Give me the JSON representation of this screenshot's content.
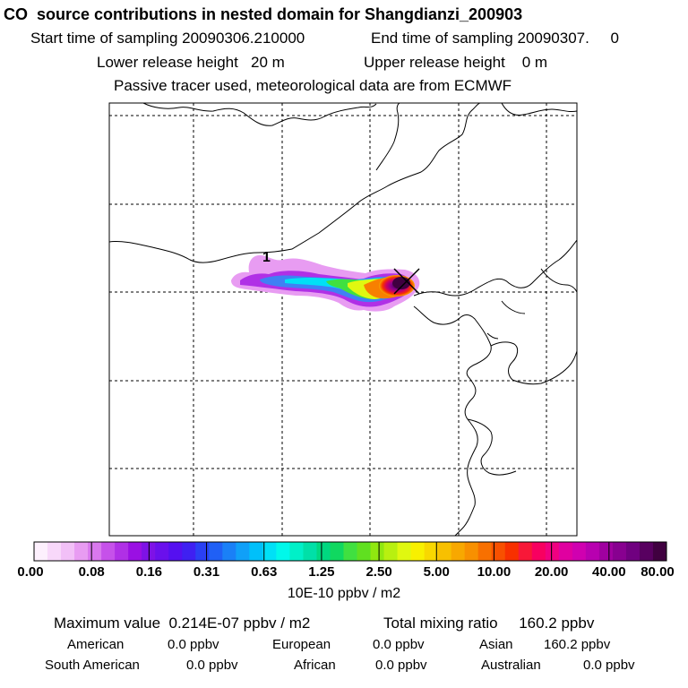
{
  "header": {
    "title": "CO  source contributions in nested domain for Shangdianzi_200903",
    "start_label": "Start time of sampling",
    "start_value": "20090306.210000",
    "end_label": "End time of sampling",
    "end_value": "20090307.     0",
    "lower_label": "Lower release height",
    "lower_value": "20 m",
    "upper_label": "Upper release height",
    "upper_value": "0 m",
    "note": "Passive tracer used, meteorological data are from ECMWF"
  },
  "map": {
    "marker_label": "1",
    "site_marker": "x-icon"
  },
  "colorbar": {
    "ticks": [
      "0.00",
      "0.08",
      "0.16",
      "0.31",
      "0.63",
      "1.25",
      "2.50",
      "5.00",
      "10.00",
      "20.00",
      "40.00",
      "80.00"
    ],
    "unit": "10E-10 ppbv / m2",
    "colors": [
      "#fdf0fd",
      "#f8d8fa",
      "#f2c0f7",
      "#e89cf2",
      "#d978ee",
      "#c651ea",
      "#b030e6",
      "#9a10e3",
      "#7e12e6",
      "#6a10ec",
      "#5510f0",
      "#3f20f2",
      "#2a40f4",
      "#2060f5",
      "#1a80f7",
      "#10a0f8",
      "#00c0fa",
      "#00e0f6",
      "#00f8ea",
      "#00f0c8",
      "#00e0a8",
      "#00d880",
      "#10d860",
      "#40e040",
      "#60e020",
      "#90e810",
      "#b8f010",
      "#e0f810",
      "#f8f000",
      "#f8d800",
      "#f8c000",
      "#f8a800",
      "#f89000",
      "#f87000",
      "#f85000",
      "#f83000",
      "#f81838",
      "#f80060",
      "#f00080",
      "#e000a0",
      "#d000b0",
      "#b800b0",
      "#a000a0",
      "#880090",
      "#700080",
      "#580060",
      "#400040"
    ]
  },
  "summary": {
    "max_label": "Maximum value",
    "max_value": "0.214E-07 ppbv / m2",
    "total_label": "Total mixing ratio",
    "total_value": "160.2 ppbv",
    "regions": [
      {
        "name": "American",
        "value": "0.0 ppbv"
      },
      {
        "name": "European",
        "value": "0.0 ppbv"
      },
      {
        "name": "Asian",
        "value": "160.2 ppbv"
      },
      {
        "name": "South American",
        "value": "0.0 ppbv"
      },
      {
        "name": "African",
        "value": "0.0 ppbv"
      },
      {
        "name": "Australian",
        "value": "0.0 ppbv"
      }
    ]
  }
}
